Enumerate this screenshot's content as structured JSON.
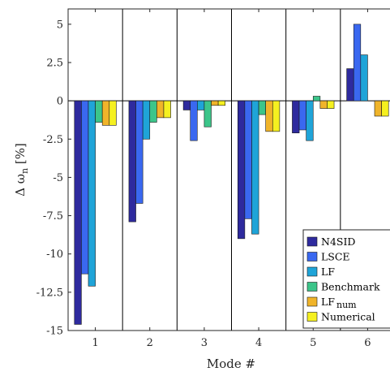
{
  "chart_data": {
    "type": "bar",
    "title": "",
    "xlabel": "Mode #",
    "ylabel": "Δ ω_n [%]",
    "ylabel_parts": {
      "prefix": "Δ ω",
      "subscript": "n",
      "suffix": " [%]"
    },
    "ylim": [
      -15,
      6
    ],
    "yticks": [
      5,
      2.5,
      0,
      -2.5,
      -5,
      -7.5,
      -10,
      -12.5,
      -15
    ],
    "ytick_labels": [
      "5",
      "2.5",
      "0",
      "-2.5",
      "-5",
      "-7.5",
      "-10",
      "-12.5",
      "-15"
    ],
    "categories": [
      "1",
      "2",
      "3",
      "4",
      "5",
      "6"
    ],
    "legend_position": "bottom-right",
    "grid": false,
    "series": [
      {
        "name": "N4SID",
        "color": "#2e2a9e",
        "values": [
          -14.6,
          -7.9,
          -0.6,
          -9.0,
          -2.1,
          2.1
        ]
      },
      {
        "name": "LSCE",
        "color": "#3a68f0",
        "values": [
          -11.3,
          -6.7,
          -2.6,
          -7.7,
          -1.9,
          5.0
        ]
      },
      {
        "name": "LF",
        "color": "#1fa4d8",
        "values": [
          -12.1,
          -2.5,
          -0.6,
          -8.7,
          -2.6,
          3.0
        ]
      },
      {
        "name": "Benchmark",
        "color": "#3cc58a",
        "values": [
          -1.4,
          -1.4,
          -1.7,
          -0.9,
          0.3,
          0.0
        ]
      },
      {
        "name": "LF_num",
        "label_main": "LF",
        "label_sub": "num",
        "color": "#f0b42a",
        "values": [
          -1.6,
          -1.1,
          -0.3,
          -2.0,
          -0.5,
          -1.0
        ]
      },
      {
        "name": "Numerical",
        "color": "#f5f020",
        "values": [
          -1.6,
          -1.1,
          -0.3,
          -2.0,
          -0.5,
          -1.0
        ]
      }
    ]
  }
}
